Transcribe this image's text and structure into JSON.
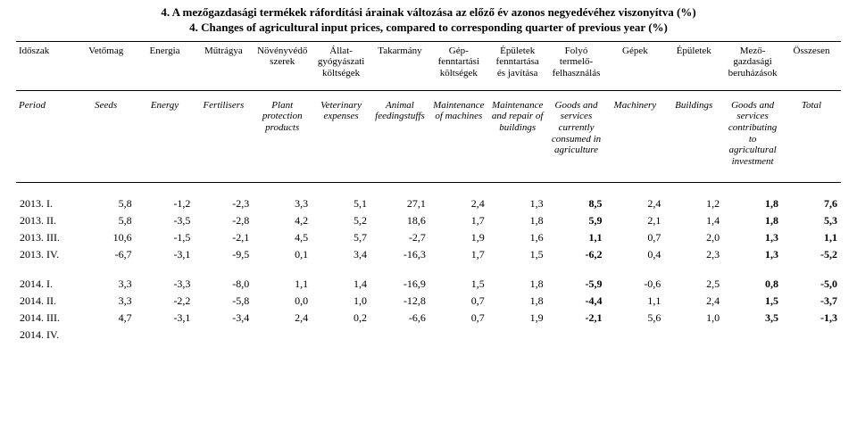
{
  "title_hu": "4. A mezőgazdasági termékek ráfordítási árainak változása az előző év azonos negyedévéhez viszonyítva (%)",
  "title_en": "4. Changes of agricultural input prices, compared to corresponding quarter of previous year (%)",
  "head_hu": [
    "Időszak",
    "Vetőmag",
    "Energia",
    "Műtrágya",
    "Növényvédő szerek",
    "Állat-gyógyászati költségek",
    "Takarmány",
    "Gép-fenntartási költségek",
    "Épületek fenntartása és javítása",
    "Folyó termelő-felhasználás",
    "Gépek",
    "Épületek",
    "Mező-gazdasági beruházások",
    "Összesen"
  ],
  "head_en": [
    "Period",
    "Seeds",
    "Energy",
    "Fertilisers",
    "Plant protection products",
    "Veterinary expenses",
    "Animal feedingstuffs",
    "Maintenance of machines",
    "Maintenance and repair of buildings",
    "Goods and services currently consumed in agriculture",
    "Machinery",
    "Buildings",
    "Goods and services contributing to agricultural investment",
    "Total"
  ],
  "rows_a": [
    {
      "p": "2013. I.",
      "v": [
        "5,8",
        "-1,2",
        "-2,3",
        "3,3",
        "5,1",
        "27,1",
        "2,4",
        "1,3",
        "8,5",
        "2,4",
        "1,2",
        "1,8",
        "7,6"
      ]
    },
    {
      "p": "2013. II.",
      "v": [
        "5,8",
        "-3,5",
        "-2,8",
        "4,2",
        "5,2",
        "18,6",
        "1,7",
        "1,8",
        "5,9",
        "2,1",
        "1,4",
        "1,8",
        "5,3"
      ]
    },
    {
      "p": "2013. III.",
      "v": [
        "10,6",
        "-1,5",
        "-2,1",
        "4,5",
        "5,7",
        "-2,7",
        "1,9",
        "1,6",
        "1,1",
        "0,7",
        "2,0",
        "1,3",
        "1,1"
      ]
    },
    {
      "p": "2013. IV.",
      "v": [
        "-6,7",
        "-3,1",
        "-9,5",
        "0,1",
        "3,4",
        "-16,3",
        "1,7",
        "1,5",
        "-6,2",
        "0,4",
        "2,3",
        "1,3",
        "-5,2"
      ]
    }
  ],
  "rows_b": [
    {
      "p": "2014. I.",
      "v": [
        "3,3",
        "-3,3",
        "-8,0",
        "1,1",
        "1,4",
        "-16,9",
        "1,5",
        "1,8",
        "-5,9",
        "-0,6",
        "2,5",
        "0,8",
        "-5,0"
      ]
    },
    {
      "p": "2014. II.",
      "v": [
        "3,3",
        "-2,2",
        "-5,8",
        "0,0",
        "1,0",
        "-12,8",
        "0,7",
        "1,8",
        "-4,4",
        "1,1",
        "2,4",
        "1,5",
        "-3,7"
      ]
    },
    {
      "p": "2014. III.",
      "v": [
        "4,7",
        "-3,1",
        "-3,4",
        "2,4",
        "0,2",
        "-6,6",
        "0,7",
        "1,9",
        "-2,1",
        "5,6",
        "1,0",
        "3,5",
        "-1,3"
      ]
    }
  ],
  "trailing_label": "2014. IV.",
  "bold_value_cols": [
    8,
    11,
    12
  ]
}
